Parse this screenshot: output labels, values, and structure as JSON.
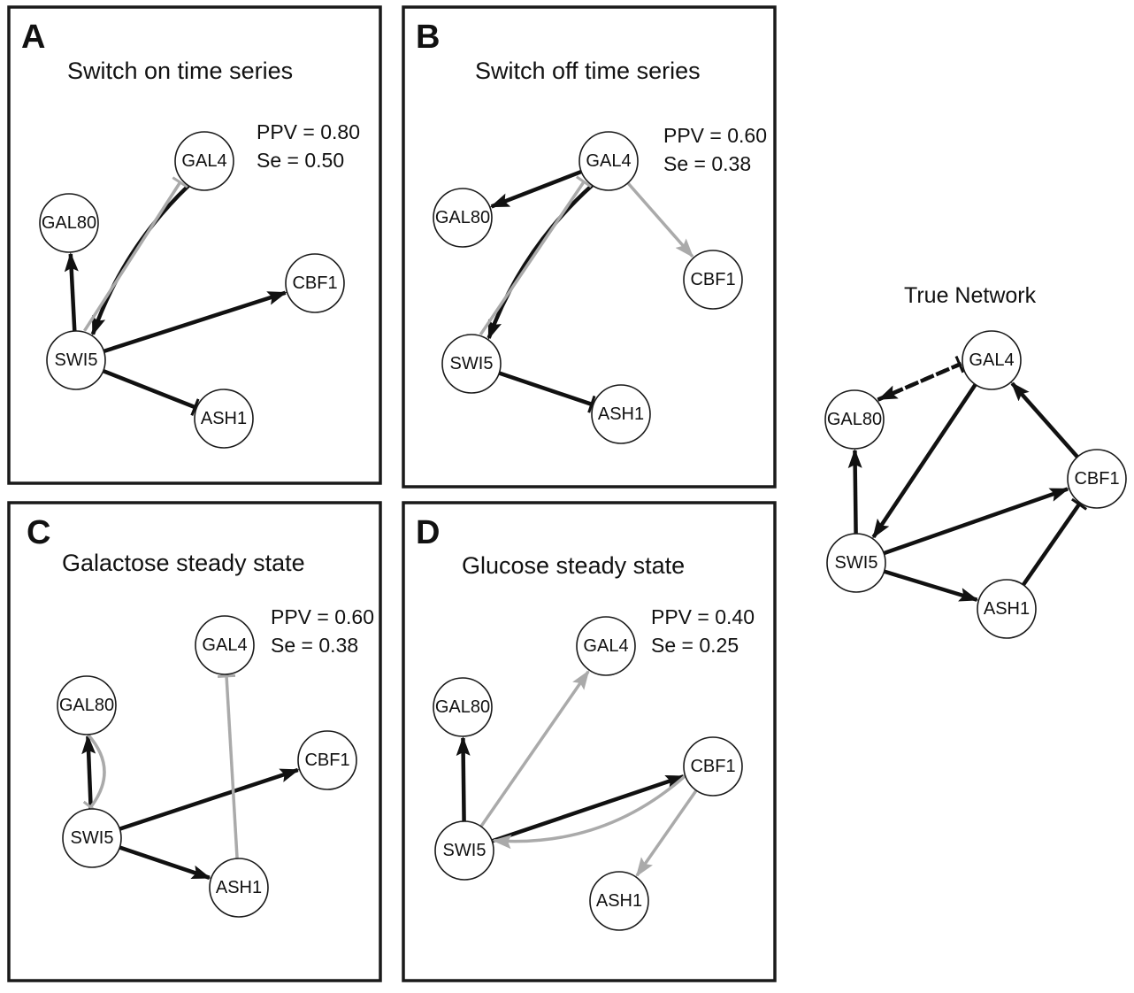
{
  "colors": {
    "black_edge": "#111111",
    "gray_edge": "#aaaaaa"
  },
  "panels": {
    "A": {
      "letter": "A",
      "title": "Switch on time series",
      "ppv": "PPV = 0.80",
      "se": "Se   = 0.50"
    },
    "B": {
      "letter": "B",
      "title": "Switch off time series",
      "ppv": "PPV = 0.60",
      "se": "Se   = 0.38"
    },
    "C": {
      "letter": "C",
      "title": "Galactose steady state",
      "ppv": "PPV = 0.60",
      "se": "Se   = 0.38"
    },
    "D": {
      "letter": "D",
      "title": "Glucose steady state",
      "ppv": "PPV = 0.40",
      "se": "Se   = 0.25"
    },
    "T": {
      "title": "True Network"
    }
  },
  "nodes": {
    "GAL4": "GAL4",
    "GAL80": "GAL80",
    "CBF1": "CBF1",
    "SWI5": "SWI5",
    "ASH1": "ASH1"
  },
  "edges": {
    "A": [
      {
        "from": "SWI5",
        "to": "GAL80",
        "type": "activation",
        "style": "black"
      },
      {
        "from": "GAL4",
        "to": "SWI5",
        "type": "activation",
        "style": "black"
      },
      {
        "from": "SWI5",
        "to": "GAL4",
        "type": "inhibition",
        "style": "gray"
      },
      {
        "from": "SWI5",
        "to": "CBF1",
        "type": "activation",
        "style": "black"
      },
      {
        "from": "SWI5",
        "to": "ASH1",
        "type": "inhibition",
        "style": "black"
      }
    ],
    "B": [
      {
        "from": "GAL4",
        "to": "GAL80",
        "type": "activation",
        "style": "black"
      },
      {
        "from": "GAL4",
        "to": "SWI5",
        "type": "activation",
        "style": "black"
      },
      {
        "from": "SWI5",
        "to": "GAL4",
        "type": "inhibition",
        "style": "gray"
      },
      {
        "from": "GAL4",
        "to": "CBF1",
        "type": "activation",
        "style": "gray"
      },
      {
        "from": "SWI5",
        "to": "ASH1",
        "type": "inhibition",
        "style": "black"
      }
    ],
    "C": [
      {
        "from": "SWI5",
        "to": "GAL80",
        "type": "activation",
        "style": "black"
      },
      {
        "from": "GAL80",
        "to": "SWI5",
        "type": "inhibition",
        "style": "gray"
      },
      {
        "from": "SWI5",
        "to": "CBF1",
        "type": "activation",
        "style": "black"
      },
      {
        "from": "SWI5",
        "to": "ASH1",
        "type": "activation",
        "style": "black"
      },
      {
        "from": "ASH1",
        "to": "GAL4",
        "type": "inhibition",
        "style": "gray"
      }
    ],
    "D": [
      {
        "from": "SWI5",
        "to": "GAL80",
        "type": "activation",
        "style": "black"
      },
      {
        "from": "SWI5",
        "to": "GAL4",
        "type": "activation",
        "style": "gray"
      },
      {
        "from": "SWI5",
        "to": "CBF1",
        "type": "activation",
        "style": "black"
      },
      {
        "from": "CBF1",
        "to": "SWI5",
        "type": "activation",
        "style": "gray"
      },
      {
        "from": "CBF1",
        "to": "ASH1",
        "type": "activation",
        "style": "gray"
      }
    ],
    "T": [
      {
        "from": "SWI5",
        "to": "GAL80",
        "type": "activation",
        "style": "black"
      },
      {
        "from": "GAL4",
        "to": "SWI5",
        "type": "activation",
        "style": "black"
      },
      {
        "from": "CBF1",
        "to": "GAL4",
        "type": "activation",
        "style": "black"
      },
      {
        "from": "SWI5",
        "to": "CBF1",
        "type": "activation",
        "style": "black"
      },
      {
        "from": "SWI5",
        "to": "ASH1",
        "type": "activation",
        "style": "black"
      },
      {
        "from": "ASH1",
        "to": "CBF1",
        "type": "inhibition",
        "style": "black"
      },
      {
        "from": "GAL80",
        "to": "GAL4",
        "type": "inhibition",
        "style": "dashed"
      },
      {
        "from": "GAL4",
        "to": "GAL80",
        "type": "activation",
        "style": "dashed"
      }
    ]
  }
}
